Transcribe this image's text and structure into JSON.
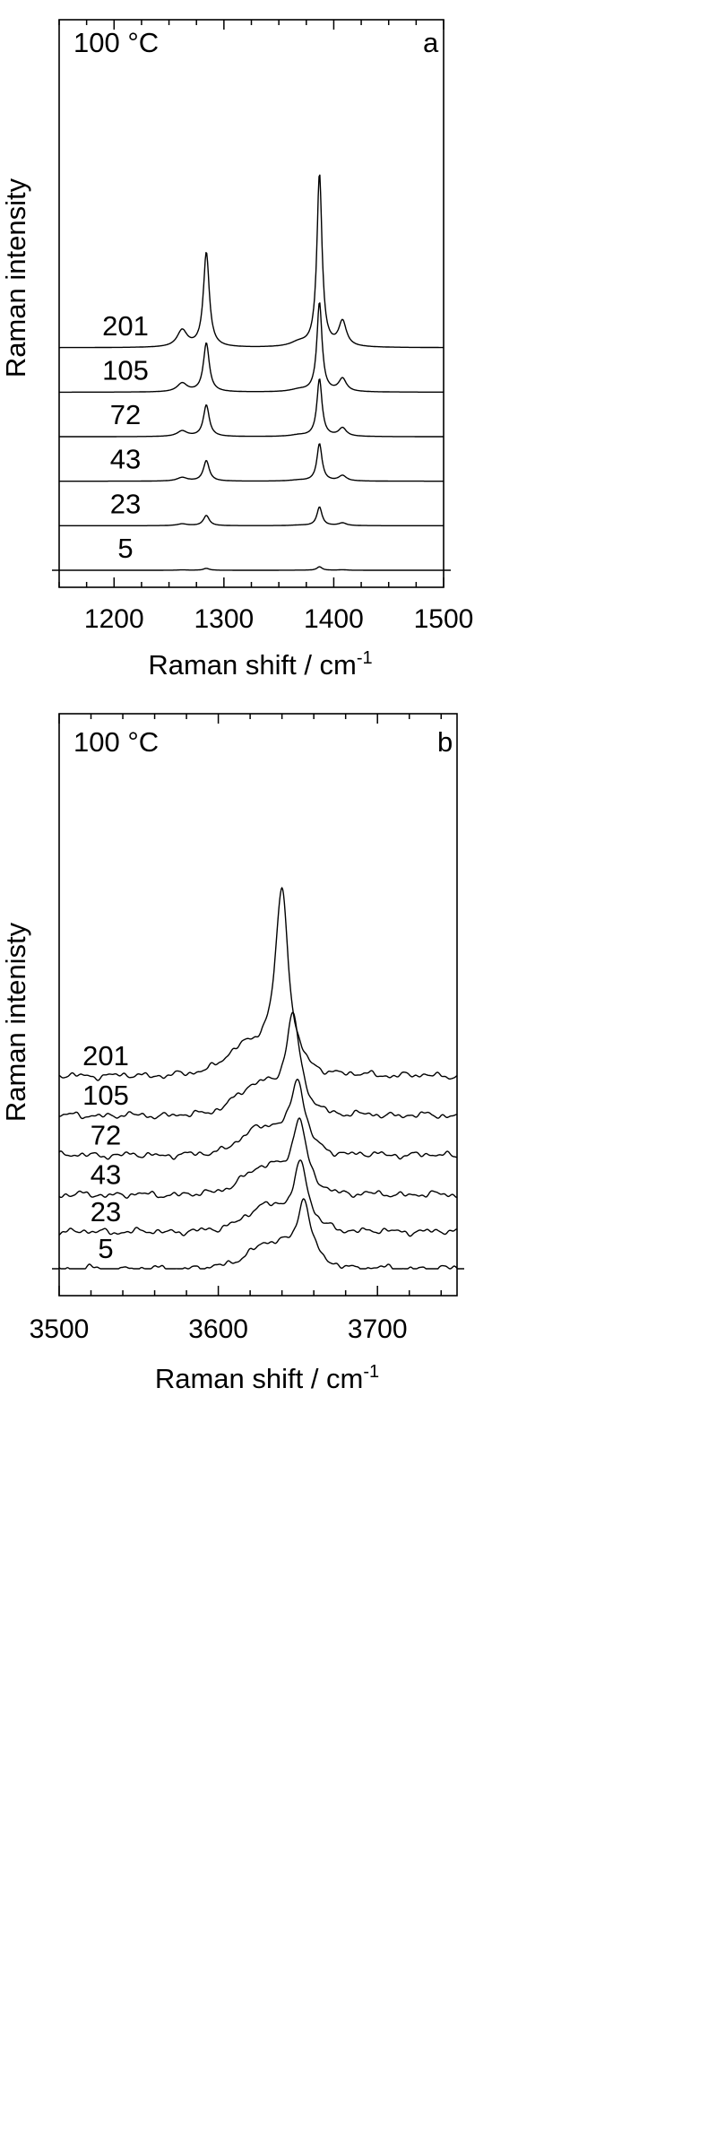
{
  "chart_data": [
    {
      "type": "line",
      "panel_letter": "a",
      "temperature_label": "100 °C",
      "xlabel": "Raman shift / cm",
      "xlabel_superscript": "-1",
      "ylabel": "Raman intensity",
      "xlim": [
        1150,
        1500
      ],
      "x_ticks": [
        1200,
        1300,
        1400,
        1500
      ],
      "x_minor_step": 25,
      "ylim": [
        0,
        1
      ],
      "grid": false,
      "legend": "none",
      "peaks": [
        {
          "center": 1262,
          "width": 5.5,
          "rel": 0.06
        },
        {
          "center": 1284,
          "width": 3.2,
          "rel": 0.34
        },
        {
          "center": 1368,
          "width": 9,
          "rel": 0.015
        },
        {
          "center": 1387,
          "width": 2.8,
          "rel": 0.62
        },
        {
          "center": 1408,
          "width": 4.2,
          "rel": 0.09
        }
      ],
      "series": [
        {
          "name": "5",
          "offset": 0.0,
          "scale": 0.012
        },
        {
          "name": "23",
          "offset": 0.085,
          "scale": 0.065
        },
        {
          "name": "43",
          "offset": 0.17,
          "scale": 0.13
        },
        {
          "name": "72",
          "offset": 0.255,
          "scale": 0.2
        },
        {
          "name": "105",
          "offset": 0.34,
          "scale": 0.31
        },
        {
          "name": "201",
          "offset": 0.425,
          "scale": 0.6
        }
      ]
    },
    {
      "type": "line",
      "panel_letter": "b",
      "temperature_label": "100 °C",
      "xlabel": "Raman shift / cm",
      "xlabel_superscript": "-1",
      "ylabel": "Raman intenisty",
      "xlim": [
        3500,
        3750
      ],
      "x_ticks": [
        3500,
        3600,
        3700
      ],
      "x_minor_step": 20,
      "ylim": [
        0,
        1
      ],
      "grid": false,
      "legend": "none",
      "series": [
        {
          "name": "5",
          "offset": 0.0,
          "peak_x": 3654,
          "height": 0.115,
          "shoulder": 0.045
        },
        {
          "name": "23",
          "offset": 0.07,
          "peak_x": 3652,
          "height": 0.115,
          "shoulder": 0.045
        },
        {
          "name": "43",
          "offset": 0.14,
          "peak_x": 3651,
          "height": 0.125,
          "shoulder": 0.05
        },
        {
          "name": "72",
          "offset": 0.215,
          "peak_x": 3650,
          "height": 0.125,
          "shoulder": 0.05
        },
        {
          "name": "105",
          "offset": 0.29,
          "peak_x": 3647,
          "height": 0.17,
          "shoulder": 0.055
        },
        {
          "name": "201",
          "offset": 0.365,
          "peak_x": 3640,
          "height": 0.335,
          "shoulder": 0.05
        }
      ]
    }
  ]
}
